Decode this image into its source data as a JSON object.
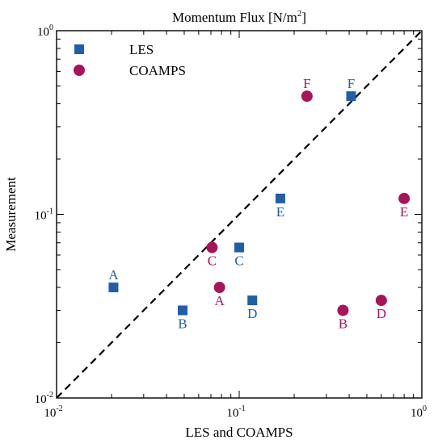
{
  "chart_data": {
    "type": "scatter",
    "title": "Momentum Flux [N/m²]",
    "title_base": "Momentum Flux [N/m",
    "title_sup": "2",
    "title_end": "]",
    "xlabel": "LES and COAMPS",
    "ylabel": "Measurement",
    "x_scale": "log",
    "y_scale": "log",
    "xlim": [
      0.01,
      1
    ],
    "ylim": [
      0.01,
      1
    ],
    "x_ticks": [
      {
        "value": 0.01,
        "label_base": "10",
        "label_exp": "-2"
      },
      {
        "value": 0.1,
        "label_base": "10",
        "label_exp": "-1"
      },
      {
        "value": 1,
        "label_base": "10",
        "label_exp": "0"
      }
    ],
    "y_ticks": [
      {
        "value": 0.01,
        "label_base": "10",
        "label_exp": "-2"
      },
      {
        "value": 0.1,
        "label_base": "10",
        "label_exp": "-1"
      },
      {
        "value": 1,
        "label_base": "10",
        "label_exp": "0"
      }
    ],
    "grid": false,
    "legend_position": "top-left",
    "reference_line": {
      "style": "dashed",
      "from": [
        0.01,
        0.01
      ],
      "to": [
        1,
        1
      ]
    },
    "series": [
      {
        "name": "LES",
        "marker": "square",
        "color": "#1f5fa8",
        "points": [
          {
            "label": "A",
            "x": 0.0205,
            "y": 0.04,
            "label_pos": "above"
          },
          {
            "label": "B",
            "x": 0.049,
            "y": 0.03,
            "label_pos": "below"
          },
          {
            "label": "C",
            "x": 0.1,
            "y": 0.066,
            "label_pos": "below"
          },
          {
            "label": "D",
            "x": 0.118,
            "y": 0.034,
            "label_pos": "below"
          },
          {
            "label": "E",
            "x": 0.168,
            "y": 0.122,
            "label_pos": "below"
          },
          {
            "label": "F",
            "x": 0.41,
            "y": 0.44,
            "label_pos": "above"
          }
        ]
      },
      {
        "name": "COAMPS",
        "marker": "circle",
        "color": "#a8145a",
        "points": [
          {
            "label": "A",
            "x": 0.078,
            "y": 0.04,
            "label_pos": "below"
          },
          {
            "label": "B",
            "x": 0.37,
            "y": 0.03,
            "label_pos": "below"
          },
          {
            "label": "C",
            "x": 0.071,
            "y": 0.066,
            "label_pos": "below"
          },
          {
            "label": "D",
            "x": 0.6,
            "y": 0.034,
            "label_pos": "below"
          },
          {
            "label": "E",
            "x": 0.8,
            "y": 0.122,
            "label_pos": "below"
          },
          {
            "label": "F",
            "x": 0.235,
            "y": 0.44,
            "label_pos": "above"
          }
        ]
      }
    ]
  }
}
